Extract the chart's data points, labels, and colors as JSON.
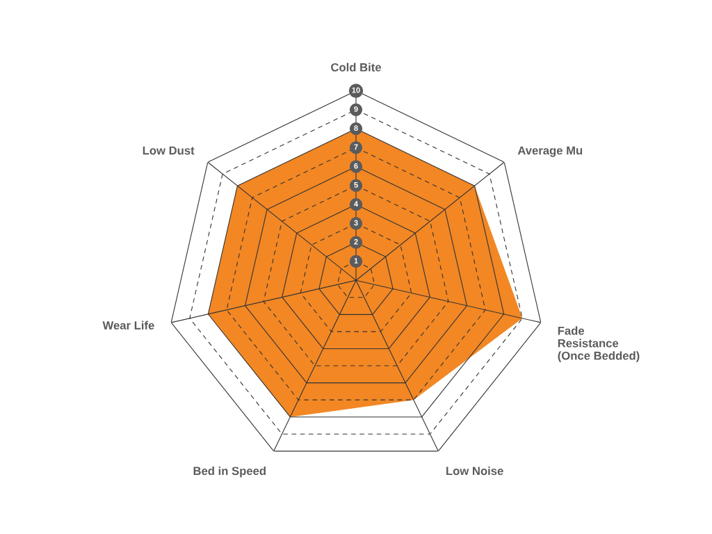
{
  "chart_data": {
    "type": "radar",
    "categories": [
      "Cold Bite",
      "Average Mu",
      "Fade\nResistance\n(Once Bedded)",
      "Low Noise",
      "Bed in Speed",
      "Wear Life",
      "Low Dust"
    ],
    "series": [
      {
        "color": "#f28724",
        "values": [
          8,
          8,
          9,
          7,
          8,
          8,
          8
        ]
      }
    ],
    "ylim": [
      0,
      10
    ],
    "yticks": [
      1,
      2,
      3,
      4,
      5,
      6,
      7,
      8,
      9,
      10
    ],
    "grid": true
  }
}
